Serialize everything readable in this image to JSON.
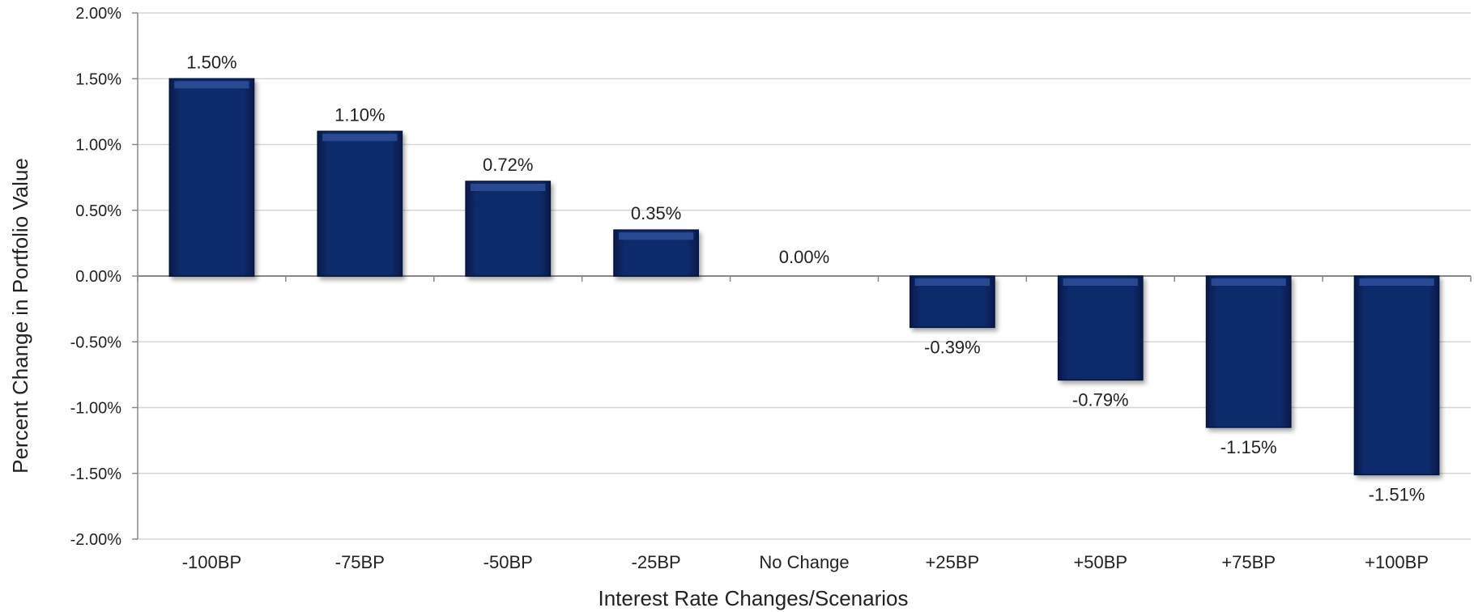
{
  "chart_data": {
    "type": "bar",
    "title": "",
    "xlabel": "Interest Rate Changes/Scenarios",
    "ylabel": "Percent Change in Portfolio Value",
    "categories": [
      "-100BP",
      "-75BP",
      "-50BP",
      "-25BP",
      "No Change",
      "+25BP",
      "+50BP",
      "+75BP",
      "+100BP"
    ],
    "values": [
      1.5,
      1.1,
      0.72,
      0.35,
      0.0,
      -0.39,
      -0.79,
      -1.15,
      -1.51
    ],
    "data_labels": [
      "1.50%",
      "1.10%",
      "0.72%",
      "0.35%",
      "0.00%",
      "-0.39%",
      "-0.79%",
      "-1.15%",
      "-1.51%"
    ],
    "ylim": [
      -2.0,
      2.0
    ],
    "yticks": [
      2.0,
      1.5,
      1.0,
      0.5,
      0.0,
      -0.5,
      -1.0,
      -1.5,
      -2.0
    ],
    "ytick_labels": [
      "2.00%",
      "1.50%",
      "1.00%",
      "0.50%",
      "0.00%",
      "-0.50%",
      "-1.00%",
      "-1.50%",
      "-2.00%"
    ],
    "grid": true,
    "legend": "none",
    "colors": {
      "bar": "#0c2461",
      "bar_highlight": "#2e4f9a",
      "bar_edge": "#06163d",
      "grid": "#d6d6d6",
      "axis": "#888888",
      "text": "#222222"
    }
  }
}
